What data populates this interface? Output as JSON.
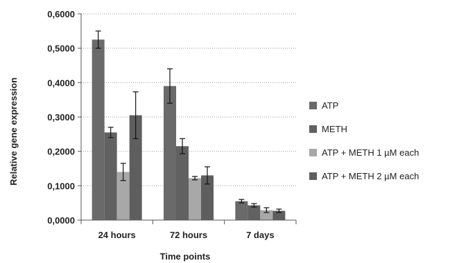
{
  "chart_data": {
    "type": "bar",
    "title": "",
    "xlabel": "Time points",
    "ylabel": "Relative gene expression",
    "categories": [
      "24 hours",
      "72 hours",
      "7 days"
    ],
    "ylim": [
      0,
      0.6
    ],
    "yticks": [
      0,
      0.1,
      0.2,
      0.3,
      0.4,
      0.5,
      0.6
    ],
    "ytick_labels": [
      "0,0000",
      "0,1000",
      "0,2000",
      "0,3000",
      "0,4000",
      "0,5000",
      "0,6000"
    ],
    "grid": "horizontal dotted",
    "legend_position": "right",
    "series": [
      {
        "name": "ATP",
        "values": [
          0.525,
          0.39,
          0.055
        ],
        "errors": [
          0.025,
          0.05,
          0.005
        ],
        "color": "#6a6a6a"
      },
      {
        "name": "METH",
        "values": [
          0.255,
          0.215,
          0.043
        ],
        "errors": [
          0.015,
          0.022,
          0.005
        ],
        "color": "#616161"
      },
      {
        "name": "ATP + METH 1 µM each",
        "values": [
          0.14,
          0.122,
          0.029
        ],
        "errors": [
          0.025,
          0.005,
          0.007
        ],
        "color": "#a8a8a8"
      },
      {
        "name": "ATP + METH 2 µM each",
        "values": [
          0.305,
          0.13,
          0.027
        ],
        "errors": [
          0.068,
          0.025,
          0.005
        ],
        "color": "#5e5e5e"
      }
    ]
  }
}
